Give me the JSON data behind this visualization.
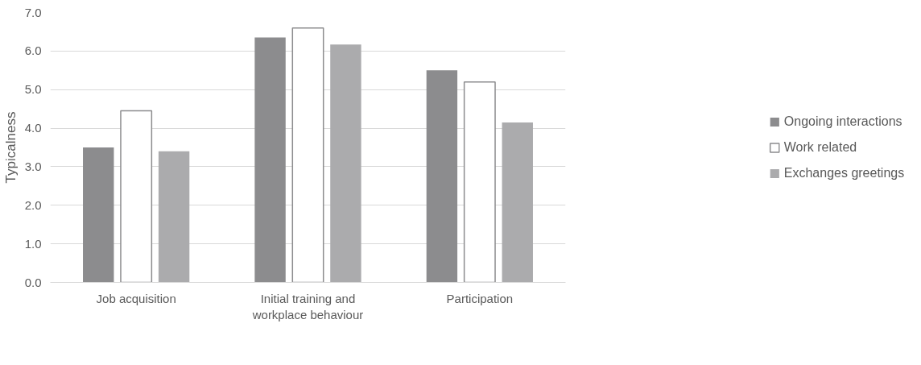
{
  "chart_data": {
    "type": "bar",
    "ylabel": "Typicalness",
    "categories": [
      "Job acquisition",
      "Initial training and workplace behaviour",
      "Participation"
    ],
    "series": [
      {
        "name": "Ongoing interactions",
        "color": "#8c8c8e",
        "values": [
          3.5,
          6.35,
          5.5
        ]
      },
      {
        "name": "Work related",
        "color": "#ffffff",
        "values": [
          4.45,
          6.6,
          5.2
        ]
      },
      {
        "name": "Exchanges greetings",
        "color": "#ababad",
        "values": [
          3.4,
          6.17,
          4.15
        ]
      }
    ],
    "ylim": [
      0,
      7
    ],
    "yticks": [
      {
        "value": 0,
        "label": "0.0"
      },
      {
        "value": 1,
        "label": "1.0"
      },
      {
        "value": 2,
        "label": "2.0"
      },
      {
        "value": 3,
        "label": "3.0"
      },
      {
        "value": 4,
        "label": "4.0"
      },
      {
        "value": 5,
        "label": "5.0"
      },
      {
        "value": 6,
        "label": "6.0"
      },
      {
        "value": 7,
        "label": "7.0"
      }
    ],
    "grid": "y",
    "legend": "right"
  }
}
